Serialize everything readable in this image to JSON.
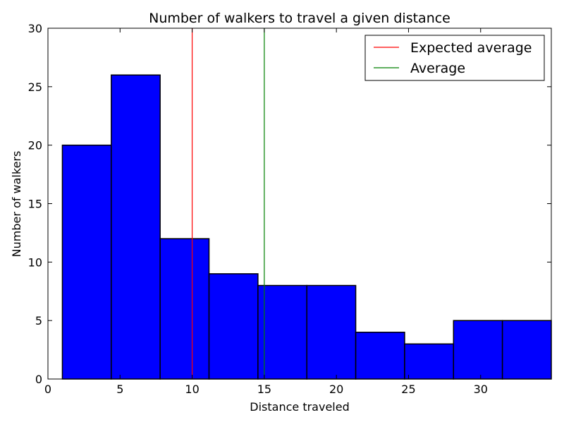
{
  "chart_data": {
    "type": "bar",
    "title": "Number of walkers to travel a given distance",
    "xlabel": "Distance traveled",
    "ylabel": "Number of walkers",
    "xlim": [
      0,
      34.9
    ],
    "ylim": [
      0,
      30
    ],
    "xticks": [
      0,
      5,
      10,
      15,
      20,
      25,
      30
    ],
    "yticks": [
      0,
      5,
      10,
      15,
      20,
      25,
      30
    ],
    "bin_edges": [
      1.0,
      4.39,
      7.78,
      11.17,
      14.56,
      17.95,
      21.34,
      24.73,
      28.12,
      31.51,
      34.9
    ],
    "values": [
      20,
      26,
      12,
      9,
      8,
      8,
      4,
      3,
      5,
      5
    ],
    "bar_color": "#0000ff",
    "vlines": [
      {
        "name": "Expected average",
        "x": 10,
        "color": "#ff0000"
      },
      {
        "name": "Average",
        "x": 15,
        "color": "#008000"
      }
    ],
    "legend_position": "top-right",
    "grid": false
  }
}
